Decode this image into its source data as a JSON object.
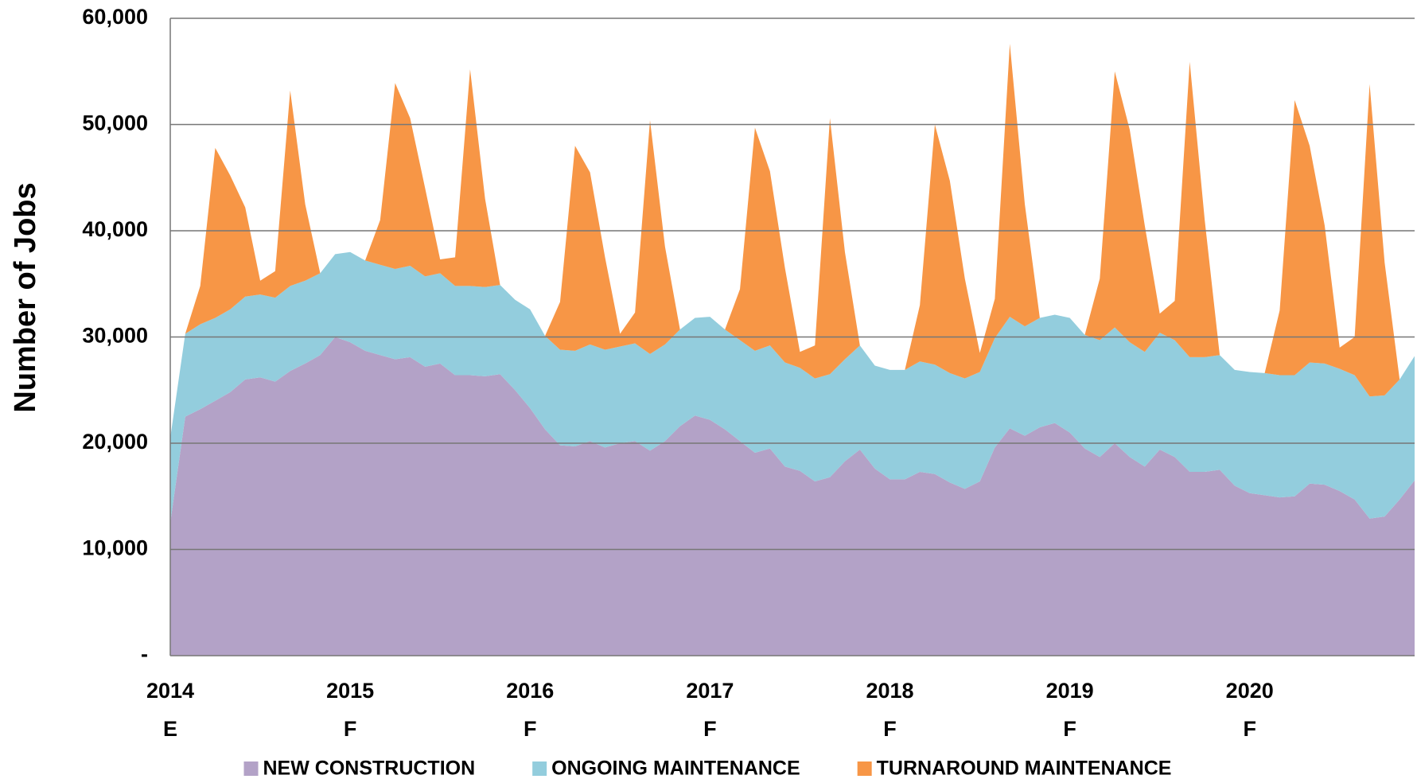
{
  "chart_data": {
    "type": "stacked_area",
    "y_label": "Number of Jobs",
    "categories": [
      "2014",
      null,
      null,
      null,
      null,
      null,
      null,
      null,
      null,
      null,
      null,
      null,
      "2015",
      null,
      null,
      null,
      null,
      null,
      null,
      null,
      null,
      null,
      null,
      null,
      "2016",
      null,
      null,
      null,
      null,
      null,
      null,
      null,
      null,
      null,
      null,
      null,
      "2017",
      null,
      null,
      null,
      null,
      null,
      null,
      null,
      null,
      null,
      null,
      null,
      "2018",
      null,
      null,
      null,
      null,
      null,
      null,
      null,
      null,
      null,
      null,
      null,
      "2019",
      null,
      null,
      null,
      null,
      null,
      null,
      null,
      null,
      null,
      null,
      null,
      "2020",
      null,
      null,
      null,
      null,
      null,
      null,
      null,
      null,
      null,
      null,
      null
    ],
    "x_sublabels": [
      "E",
      null,
      null,
      null,
      null,
      null,
      null,
      null,
      null,
      null,
      null,
      null,
      "F",
      null,
      null,
      null,
      null,
      null,
      null,
      null,
      null,
      null,
      null,
      null,
      "F",
      null,
      null,
      null,
      null,
      null,
      null,
      null,
      null,
      null,
      null,
      null,
      "F",
      null,
      null,
      null,
      null,
      null,
      null,
      null,
      null,
      null,
      null,
      null,
      "F",
      null,
      null,
      null,
      null,
      null,
      null,
      null,
      null,
      null,
      null,
      null,
      "F",
      null,
      null,
      null,
      null,
      null,
      null,
      null,
      null,
      null,
      null,
      null,
      "F",
      null,
      null,
      null,
      null,
      null,
      null,
      null,
      null,
      null,
      null,
      null
    ],
    "series": [
      {
        "name": "NEW CONSTRUCTION",
        "color": "#b3a2c7",
        "values": [
          12500,
          22500,
          23200,
          24000,
          24800,
          26000,
          26200,
          25800,
          26800,
          27500,
          28300,
          30000,
          29500,
          28700,
          28300,
          27900,
          28100,
          27200,
          27500,
          26400,
          26400,
          26300,
          26500,
          25000,
          23300,
          21300,
          19800,
          19700,
          20200,
          19600,
          20000,
          20200,
          19300,
          20200,
          21600,
          22600,
          22200,
          21300,
          20200,
          19100,
          19500,
          17800,
          17400,
          16400,
          16800,
          18300,
          19400,
          17600,
          16600,
          16600,
          17300,
          17100,
          16300,
          15700,
          16400,
          19600,
          21400,
          20700,
          21500,
          21900,
          21000,
          19500,
          18700,
          20000,
          18700,
          17800,
          19400,
          18700,
          17300,
          17300,
          17500,
          16000,
          15300,
          15100,
          14900,
          15000,
          16200,
          16100,
          15500,
          14700,
          12900,
          13100,
          14700,
          16500
        ]
      },
      {
        "name": "ONGOING MAINTENANCE",
        "color": "#93cddd",
        "values": [
          8000,
          7800,
          8000,
          7800,
          7800,
          7800,
          7800,
          7900,
          8000,
          7800,
          7700,
          7800,
          8500,
          8500,
          8500,
          8500,
          8600,
          8500,
          8500,
          8400,
          8400,
          8400,
          8400,
          8500,
          9300,
          8800,
          9000,
          9000,
          9100,
          9200,
          9100,
          9200,
          9100,
          9100,
          9100,
          9200,
          9700,
          9400,
          9500,
          9600,
          9700,
          9800,
          9700,
          9700,
          9700,
          9600,
          9800,
          9700,
          10300,
          10300,
          10400,
          10300,
          10300,
          10400,
          10300,
          10300,
          10500,
          10300,
          10300,
          10200,
          10800,
          10700,
          11000,
          10900,
          10800,
          10800,
          11000,
          11000,
          10800,
          10800,
          10800,
          10900,
          11400,
          11500,
          11500,
          11400,
          11400,
          11400,
          11500,
          11700,
          11500,
          11400,
          11300,
          11700
        ]
      },
      {
        "name": "TURNAROUND MAINTENANCE",
        "color": "#f79646",
        "values": [
          0,
          0,
          3600,
          16000,
          12600,
          8400,
          1300,
          2500,
          18400,
          7200,
          0,
          0,
          0,
          0,
          4200,
          17500,
          13900,
          8300,
          1300,
          2700,
          20400,
          8300,
          0,
          0,
          0,
          0,
          4500,
          19300,
          16200,
          8700,
          1200,
          2900,
          22000,
          9200,
          0,
          0,
          0,
          0,
          4800,
          21000,
          16400,
          8900,
          1500,
          3100,
          24100,
          10100,
          0,
          0,
          0,
          0,
          5300,
          22600,
          18100,
          9400,
          1800,
          3700,
          25700,
          11500,
          0,
          0,
          0,
          0,
          5800,
          24100,
          20000,
          11900,
          1800,
          3700,
          27800,
          12900,
          0,
          0,
          0,
          0,
          6100,
          25900,
          20400,
          13000,
          2000,
          3600,
          29400,
          12500,
          0,
          0
        ]
      }
    ],
    "ylim": [
      0,
      60000
    ],
    "yticks": [
      {
        "value": 0,
        "label": "-"
      },
      {
        "value": 10000,
        "label": "10,000"
      },
      {
        "value": 20000,
        "label": "20,000"
      },
      {
        "value": 30000,
        "label": "30,000"
      },
      {
        "value": 40000,
        "label": "40,000"
      },
      {
        "value": 50000,
        "label": "50,000"
      },
      {
        "value": 60000,
        "label": "60,000"
      }
    ],
    "grid": true,
    "legend": "bottom"
  }
}
